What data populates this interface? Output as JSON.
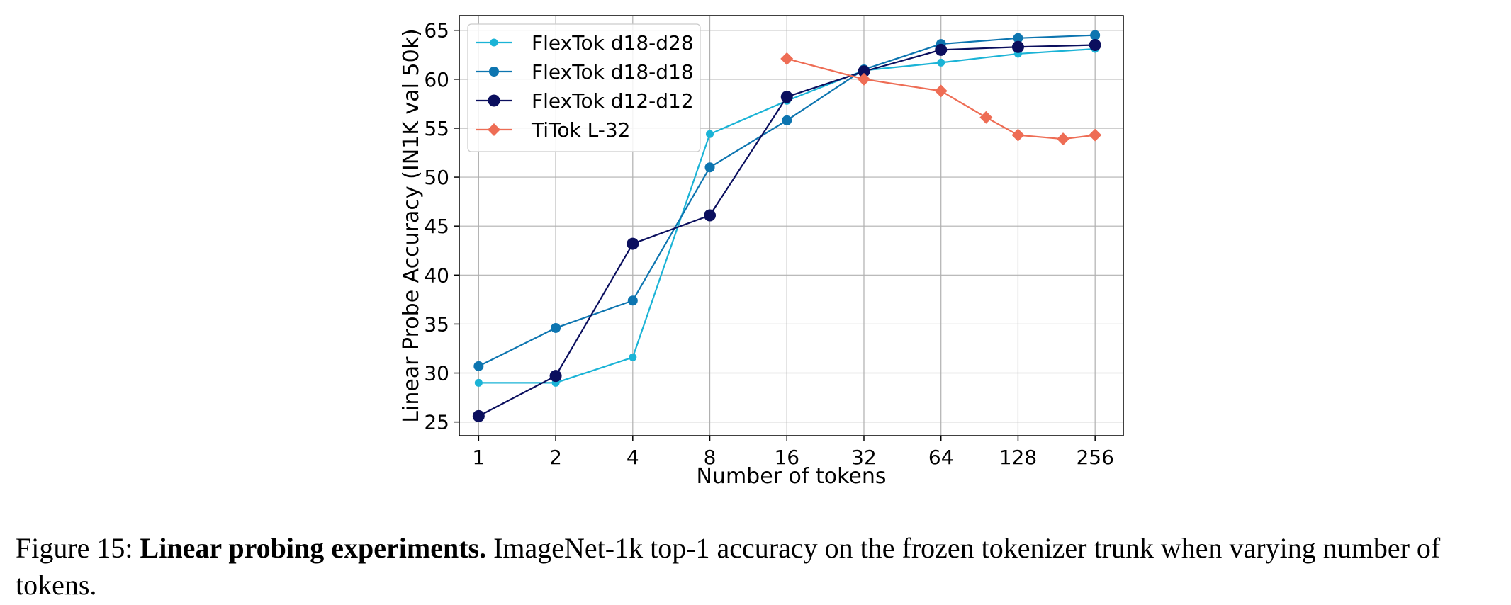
{
  "chart_data": {
    "type": "line",
    "xlabel": "Number of tokens",
    "ylabel": "Linear Probe Accuracy (IN1K val 50k)",
    "x_scale": "log2",
    "x_ticks": [
      1,
      2,
      4,
      8,
      16,
      32,
      64,
      128,
      256
    ],
    "y_ticks": [
      25,
      30,
      35,
      40,
      45,
      50,
      55,
      60,
      65
    ],
    "xlim": [
      0.84,
      330
    ],
    "ylim": [
      23.6,
      66.5
    ],
    "grid": true,
    "legend_position": "upper-left",
    "series": [
      {
        "name": "FlexTok d18-d28",
        "color": "#1ab3d6",
        "marker": "circle-small",
        "x": [
          1,
          2,
          4,
          8,
          16,
          32,
          64,
          128,
          256
        ],
        "y": [
          29.0,
          29.0,
          31.6,
          54.4,
          57.8,
          60.9,
          61.7,
          62.6,
          63.1
        ]
      },
      {
        "name": "FlexTok d18-d18",
        "color": "#0d75b0",
        "marker": "circle-medium",
        "x": [
          1,
          2,
          4,
          8,
          16,
          32,
          64,
          128,
          256
        ],
        "y": [
          30.7,
          34.6,
          37.4,
          51.0,
          55.8,
          61.0,
          63.6,
          64.2,
          64.5
        ]
      },
      {
        "name": "FlexTok d12-d12",
        "color": "#0b0f5e",
        "marker": "circle-large",
        "x": [
          1,
          2,
          4,
          8,
          16,
          32,
          64,
          128,
          256
        ],
        "y": [
          25.6,
          29.7,
          43.2,
          46.1,
          58.2,
          60.8,
          63.0,
          63.3,
          63.5
        ]
      },
      {
        "name": "TiTok L-32",
        "color": "#ee6d55",
        "marker": "diamond",
        "x": [
          16,
          32,
          64,
          96,
          128,
          192,
          256
        ],
        "y": [
          62.1,
          60.0,
          58.8,
          56.1,
          54.3,
          53.9,
          54.3
        ]
      }
    ]
  },
  "caption": {
    "label": "Figure 15:",
    "title": "Linear probing experiments.",
    "text": "ImageNet-1k top-1 accuracy on the frozen tokenizer trunk when varying number of tokens."
  }
}
